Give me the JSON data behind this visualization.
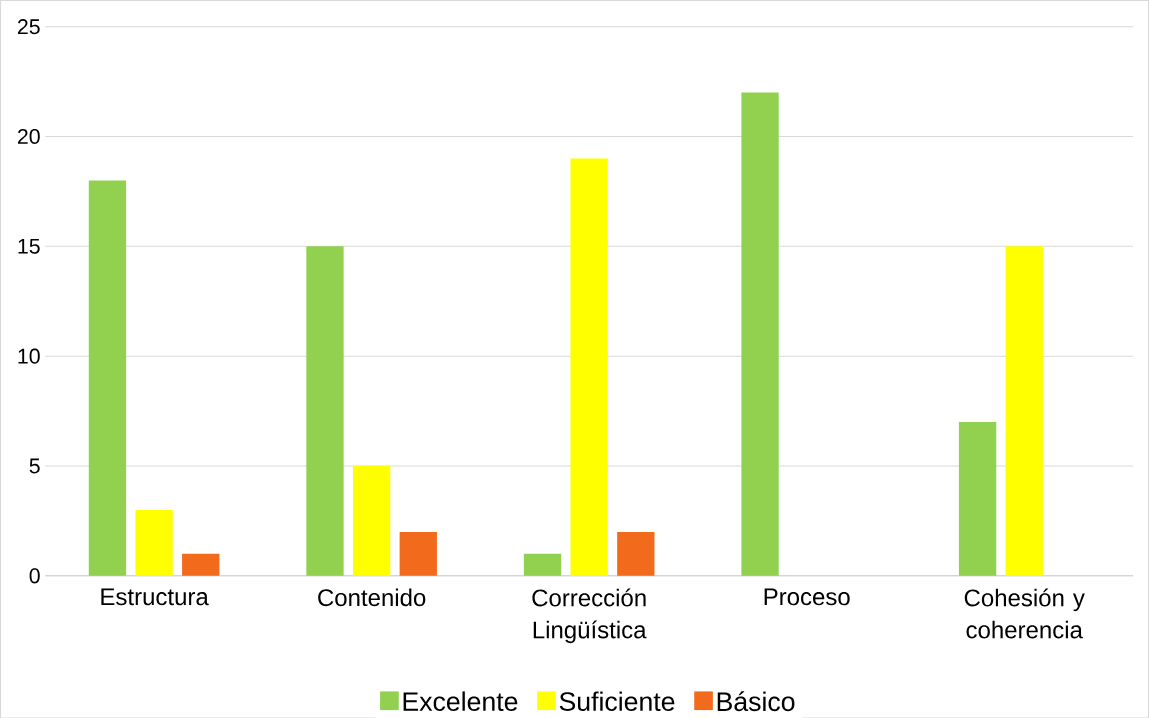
{
  "chart_data": {
    "type": "bar",
    "categories": [
      "Estructura",
      "Contenido",
      "Corrección Lingüística",
      "Proceso",
      "Cohesión y coherencia"
    ],
    "series": [
      {
        "name": "Excelente",
        "color": "#92d050",
        "values": [
          18,
          15,
          1,
          22,
          7
        ]
      },
      {
        "name": "Suficiente",
        "color": "#ffff00",
        "values": [
          3,
          5,
          19,
          0,
          15
        ]
      },
      {
        "name": "Básico",
        "color": "#f26b1d",
        "values": [
          1,
          2,
          2,
          0,
          0
        ]
      }
    ],
    "ylim": [
      0,
      25
    ],
    "yticks": [
      0,
      5,
      10,
      15,
      20,
      25
    ],
    "grid": "y",
    "legend": "bottom"
  }
}
